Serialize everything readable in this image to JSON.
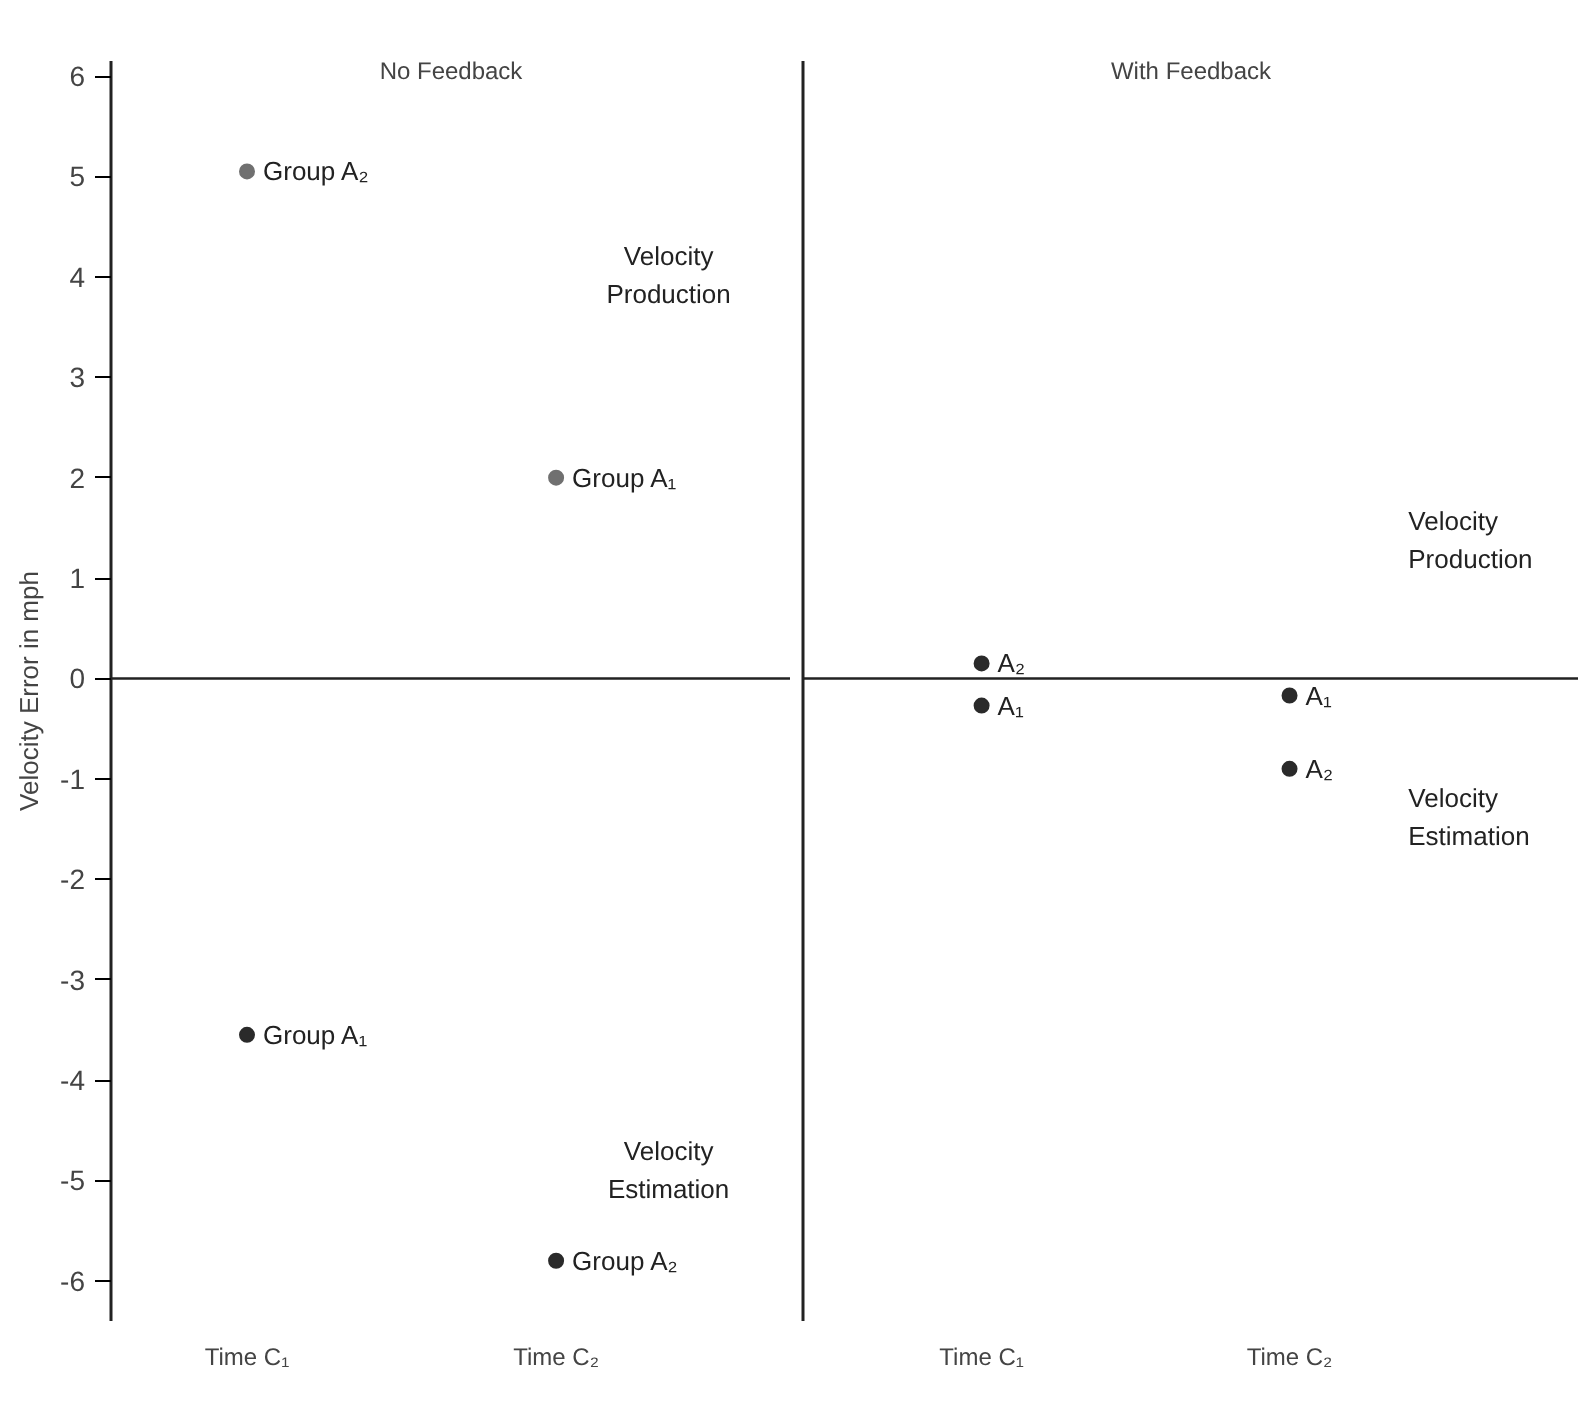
{
  "chart_data": [
    {
      "type": "scatter",
      "title": "No Feedback",
      "ylabel": "Velocity Error in mph",
      "categories": [
        "Time C₁",
        "Time C₂"
      ],
      "ylim": [
        -6.4,
        6.15
      ],
      "yticks": [
        -6,
        -5,
        -4,
        -3,
        -2,
        -1,
        0,
        1,
        2,
        3,
        4,
        5,
        6
      ],
      "grid": false,
      "marker": "circle",
      "series": [
        {
          "color": "#707070",
          "values": [
            5.05,
            2.0
          ]
        },
        {
          "color": "#2a2a2a",
          "values": [
            -3.55,
            -5.8
          ]
        }
      ],
      "ref_lines": [
        {
          "axis": "y",
          "value": 0,
          "color": "#222222"
        }
      ],
      "annotations": [
        {
          "text": "Group A₂",
          "x": "Time C₁",
          "y": 5.05
        },
        {
          "text": "Group A₁",
          "x": "Time C₂",
          "y": 2.0
        },
        {
          "text": "Group A₁",
          "x": "Time C₁",
          "y": -3.55
        },
        {
          "text": "Group A₂",
          "x": "Time C₂",
          "y": -5.8
        },
        "Velocity Production",
        "Velocity Estimation"
      ]
    },
    {
      "type": "scatter",
      "title": "With Feedback",
      "categories": [
        "Time C₁",
        "Time C₂"
      ],
      "ylim": [
        -6.4,
        6.15
      ],
      "yticks": [
        -6,
        -5,
        -4,
        -3,
        -2,
        -1,
        0,
        1,
        2,
        3,
        4,
        5,
        6
      ],
      "tick_labels": "x",
      "grid": false,
      "marker": "circle",
      "series": [
        {
          "color": "#2a2a2a",
          "values": [
            0.15,
            -0.17
          ]
        },
        {
          "color": "#2a2a2a",
          "values": [
            -0.27,
            -0.9
          ]
        }
      ],
      "ref_lines": [
        {
          "axis": "y",
          "value": 0,
          "color": "#222222"
        }
      ],
      "annotations": [
        {
          "text": "A₂",
          "x": "Time C₁",
          "y": 0.15
        },
        {
          "text": "A₁",
          "x": "Time C₁",
          "y": -0.27
        },
        {
          "text": "A₁",
          "x": "Time C₂",
          "y": -0.17
        },
        {
          "text": "A₂",
          "x": "Time C₂",
          "y": -0.9
        },
        "Velocity Production",
        "Velocity Estimation"
      ]
    }
  ]
}
